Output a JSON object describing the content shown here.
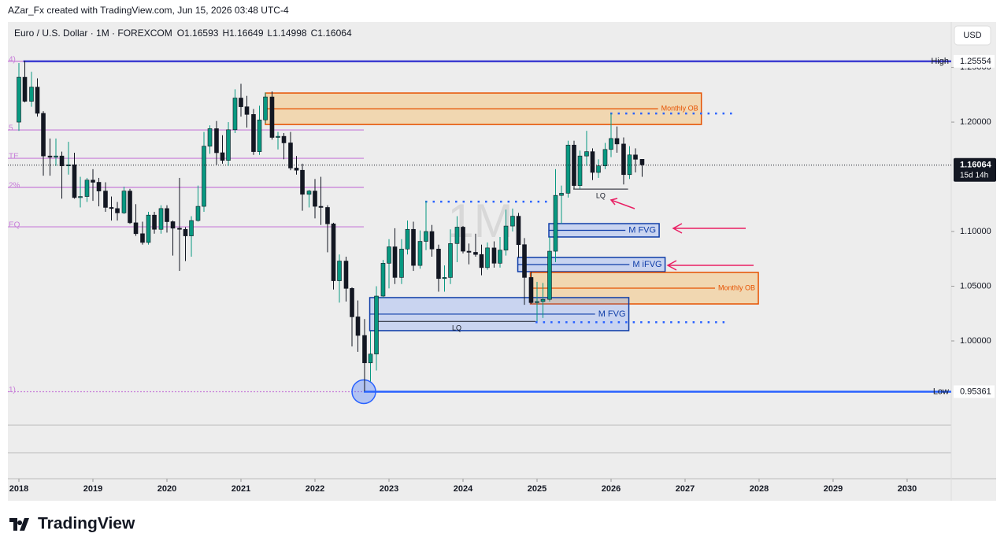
{
  "header": {
    "credit": "AZar_Fx created with TradingView.com, Jun 15, 2026 03:48 UTC-4",
    "brand": "TradingView"
  },
  "chart_data": {
    "type": "candlestick",
    "symbol": "Euro / U.S. Dollar · 1M · FOREXCOM",
    "ohlc_labels": [
      "O",
      "H",
      "L",
      "C"
    ],
    "last_ohlc": [
      1.16593,
      1.16649,
      1.14998,
      1.16064
    ],
    "currency": "USD",
    "watermark": "1M",
    "up_color": "#089981",
    "down_color": "#131722",
    "xlim": [
      2017.851,
      2030.596
    ],
    "xticks": [
      2018,
      2019,
      2020,
      2021,
      2022,
      2023,
      2024,
      2025,
      2026,
      2027,
      2028,
      2029,
      2030
    ],
    "ylim": [
      0.923,
      1.29
    ],
    "yticks": [
      {
        "value": 1.0,
        "label": "1.00000"
      },
      {
        "value": 1.05,
        "label": "1.05000"
      },
      {
        "value": 1.1,
        "label": "1.10000"
      },
      {
        "value": 1.2,
        "label": "1.20000"
      },
      {
        "value": 1.25,
        "label": "1.25000"
      }
    ],
    "x": [
      2018,
      2018.08,
      2018.17,
      2018.25,
      2018.33,
      2018.42,
      2018.5,
      2018.58,
      2018.67,
      2018.75,
      2018.83,
      2018.92,
      2019,
      2019.08,
      2019.17,
      2019.25,
      2019.33,
      2019.42,
      2019.5,
      2019.58,
      2019.67,
      2019.75,
      2019.83,
      2019.92,
      2020,
      2020.08,
      2020.17,
      2020.25,
      2020.33,
      2020.42,
      2020.5,
      2020.58,
      2020.67,
      2020.75,
      2020.83,
      2020.92,
      2021,
      2021.08,
      2021.17,
      2021.25,
      2021.33,
      2021.42,
      2021.5,
      2021.58,
      2021.67,
      2021.75,
      2021.83,
      2021.92,
      2022,
      2022.08,
      2022.17,
      2022.25,
      2022.33,
      2022.42,
      2022.5,
      2022.58,
      2022.67,
      2022.75,
      2022.83,
      2022.92,
      2023,
      2023.08,
      2023.17,
      2023.25,
      2023.33,
      2023.42,
      2023.5,
      2023.58,
      2023.67,
      2023.75,
      2023.83,
      2023.92,
      2024,
      2024.08,
      2024.17,
      2024.25,
      2024.33,
      2024.42,
      2024.5,
      2024.58,
      2024.67,
      2024.75,
      2024.83,
      2024.92,
      2025,
      2025.08,
      2025.17,
      2025.25,
      2025.33,
      2025.42,
      2025.5,
      2025.58,
      2025.67,
      2025.75,
      2025.83,
      2025.92,
      2026,
      2026.08,
      2026.17,
      2026.25,
      2026.33,
      2026.42
    ],
    "candles": [
      [
        1.2,
        1.254,
        1.192,
        1.241
      ],
      [
        1.241,
        1.256,
        1.218,
        1.219
      ],
      [
        1.219,
        1.246,
        1.214,
        1.232
      ],
      [
        1.232,
        1.24,
        1.205,
        1.208
      ],
      [
        1.208,
        1.21,
        1.151,
        1.169
      ],
      [
        1.169,
        1.185,
        1.151,
        1.168
      ],
      [
        1.168,
        1.185,
        1.16,
        1.169
      ],
      [
        1.169,
        1.173,
        1.13,
        1.16
      ],
      [
        1.16,
        1.182,
        1.152,
        1.161
      ],
      [
        1.161,
        1.172,
        1.13,
        1.131
      ],
      [
        1.131,
        1.15,
        1.122,
        1.132
      ],
      [
        1.132,
        1.149,
        1.127,
        1.147
      ],
      [
        1.147,
        1.157,
        1.128,
        1.145
      ],
      [
        1.145,
        1.149,
        1.123,
        1.137
      ],
      [
        1.137,
        1.145,
        1.118,
        1.122
      ],
      [
        1.122,
        1.132,
        1.11,
        1.121
      ],
      [
        1.121,
        1.127,
        1.11,
        1.117
      ],
      [
        1.117,
        1.141,
        1.116,
        1.137
      ],
      [
        1.137,
        1.139,
        1.107,
        1.108
      ],
      [
        1.108,
        1.125,
        1.096,
        1.098
      ],
      [
        1.098,
        1.109,
        1.088,
        1.09
      ],
      [
        1.09,
        1.118,
        1.088,
        1.115
      ],
      [
        1.115,
        1.118,
        1.098,
        1.102
      ],
      [
        1.102,
        1.124,
        1.098,
        1.121
      ],
      [
        1.121,
        1.124,
        1.099,
        1.109
      ],
      [
        1.109,
        1.11,
        1.078,
        1.103
      ],
      [
        1.103,
        1.149,
        1.064,
        1.102
      ],
      [
        1.102,
        1.104,
        1.073,
        1.096
      ],
      [
        1.096,
        1.114,
        1.077,
        1.11
      ],
      [
        1.11,
        1.142,
        1.109,
        1.123
      ],
      [
        1.123,
        1.191,
        1.118,
        1.178
      ],
      [
        1.178,
        1.197,
        1.171,
        1.194
      ],
      [
        1.194,
        1.201,
        1.161,
        1.172
      ],
      [
        1.172,
        1.188,
        1.162,
        1.165
      ],
      [
        1.165,
        1.2,
        1.16,
        1.193
      ],
      [
        1.193,
        1.23,
        1.19,
        1.222
      ],
      [
        1.222,
        1.235,
        1.205,
        1.214
      ],
      [
        1.214,
        1.224,
        1.195,
        1.207
      ],
      [
        1.207,
        1.212,
        1.17,
        1.173
      ],
      [
        1.173,
        1.215,
        1.17,
        1.202
      ],
      [
        1.202,
        1.227,
        1.199,
        1.223
      ],
      [
        1.223,
        1.228,
        1.184,
        1.186
      ],
      [
        1.186,
        1.191,
        1.175,
        1.187
      ],
      [
        1.187,
        1.19,
        1.166,
        1.181
      ],
      [
        1.181,
        1.191,
        1.156,
        1.158
      ],
      [
        1.158,
        1.169,
        1.152,
        1.156
      ],
      [
        1.156,
        1.162,
        1.119,
        1.134
      ],
      [
        1.134,
        1.138,
        1.122,
        1.137
      ],
      [
        1.137,
        1.148,
        1.112,
        1.123
      ],
      [
        1.123,
        1.15,
        1.106,
        1.122
      ],
      [
        1.122,
        1.124,
        1.081,
        1.107
      ],
      [
        1.107,
        1.108,
        1.047,
        1.055
      ],
      [
        1.055,
        1.079,
        1.035,
        1.073
      ],
      [
        1.073,
        1.077,
        1.036,
        1.048
      ],
      [
        1.048,
        1.049,
        0.995,
        1.022
      ],
      [
        1.022,
        1.037,
        0.99,
        1.005
      ],
      [
        1.005,
        1.02,
        0.954,
        0.98
      ],
      [
        0.98,
        1.009,
        0.963,
        0.988
      ],
      [
        0.988,
        1.05,
        0.973,
        1.041
      ],
      [
        1.041,
        1.074,
        1.039,
        1.071
      ],
      [
        1.071,
        1.093,
        1.048,
        1.086
      ],
      [
        1.086,
        1.103,
        1.052,
        1.058
      ],
      [
        1.058,
        1.093,
        1.052,
        1.084
      ],
      [
        1.084,
        1.11,
        1.079,
        1.102
      ],
      [
        1.102,
        1.109,
        1.064,
        1.069
      ],
      [
        1.069,
        1.101,
        1.066,
        1.091
      ],
      [
        1.091,
        1.128,
        1.083,
        1.1
      ],
      [
        1.1,
        1.106,
        1.077,
        1.084
      ],
      [
        1.084,
        1.088,
        1.045,
        1.057
      ],
      [
        1.057,
        1.069,
        1.045,
        1.058
      ],
      [
        1.058,
        1.102,
        1.052,
        1.089
      ],
      [
        1.089,
        1.114,
        1.072,
        1.104
      ],
      [
        1.104,
        1.105,
        1.08,
        1.082
      ],
      [
        1.082,
        1.089,
        1.07,
        1.081
      ],
      [
        1.081,
        1.098,
        1.077,
        1.079
      ],
      [
        1.079,
        1.088,
        1.06,
        1.067
      ],
      [
        1.067,
        1.09,
        1.065,
        1.085
      ],
      [
        1.085,
        1.091,
        1.067,
        1.071
      ],
      [
        1.071,
        1.095,
        1.067,
        1.083
      ],
      [
        1.083,
        1.12,
        1.078,
        1.105
      ],
      [
        1.105,
        1.121,
        1.1,
        1.114
      ],
      [
        1.114,
        1.117,
        1.076,
        1.088
      ],
      [
        1.088,
        1.094,
        1.033,
        1.058
      ],
      [
        1.058,
        1.063,
        1.034,
        1.035
      ],
      [
        1.035,
        1.054,
        1.018,
        1.036
      ],
      [
        1.036,
        1.053,
        1.021,
        1.038
      ],
      [
        1.038,
        1.095,
        1.036,
        1.082
      ],
      [
        1.082,
        1.157,
        1.072,
        1.133
      ],
      [
        1.133,
        1.142,
        1.107,
        1.135
      ],
      [
        1.135,
        1.183,
        1.131,
        1.179
      ],
      [
        1.179,
        1.183,
        1.139,
        1.142
      ],
      [
        1.142,
        1.174,
        1.139,
        1.169
      ],
      [
        1.169,
        1.192,
        1.16,
        1.173
      ],
      [
        1.173,
        1.176,
        1.147,
        1.154
      ],
      [
        1.154,
        1.166,
        1.149,
        1.16
      ],
      [
        1.16,
        1.181,
        1.157,
        1.175
      ],
      [
        1.175,
        1.208,
        1.168,
        1.185
      ],
      [
        1.185,
        1.196,
        1.172,
        1.18
      ],
      [
        1.18,
        1.186,
        1.143,
        1.152
      ],
      [
        1.152,
        1.178,
        1.148,
        1.17
      ],
      [
        1.17,
        1.176,
        1.154,
        1.166
      ],
      [
        1.166,
        1.166,
        1.15,
        1.161
      ]
    ],
    "high": {
      "label": "High",
      "value": 1.25554,
      "value_label": "1.25554",
      "x": 2018.06
    },
    "low": {
      "label": "Low",
      "value": 0.95361,
      "value_label": "0.95361",
      "x": 2022.66
    },
    "last": {
      "value": 1.16064,
      "value_label": "1.16064",
      "countdown": "15d 14h"
    },
    "fib_x": [
      2017.851,
      2022.66
    ],
    "fib_levels": [
      {
        "label": "4)",
        "value": 1.25554
      },
      {
        "label": "5",
        "value": 1.1928
      },
      {
        "label": "TE",
        "value": 1.1669
      },
      {
        "label": "2%",
        "value": 1.1403
      },
      {
        "label": "EQ",
        "value": 1.1043
      },
      {
        "label": "1)",
        "value": 0.95361
      }
    ],
    "zones": [
      {
        "label": "Monthly OB",
        "x": [
          2021.33,
          2027.22
        ],
        "range": [
          1.1978,
          1.2266
        ],
        "color": "#e65100"
      },
      {
        "label": "M FVG",
        "x": [
          2025.16,
          2026.65
        ],
        "range": [
          1.095,
          1.1072
        ],
        "color": "#0d3ca8"
      },
      {
        "label": "M iFVG",
        "x": [
          2024.74,
          2026.73
        ],
        "range": [
          1.0633,
          1.0763
        ],
        "color": "#0d3ca8"
      },
      {
        "label": "Monthly OB",
        "x": [
          2024.91,
          2027.99
        ],
        "range": [
          1.0338,
          1.0626
        ],
        "color": "#e65100"
      },
      {
        "label": "M FVG",
        "x": [
          2022.74,
          2026.24
        ],
        "range": [
          1.0094,
          1.0396
        ],
        "color": "#0d3ca8"
      }
    ],
    "dotted_levels": [
      {
        "value": 1.2079,
        "x": [
          2025.99,
          2027.69
        ]
      },
      {
        "value": 1.1273,
        "x": [
          2023.49,
          2025.19
        ]
      },
      {
        "value": 1.0171,
        "x": [
          2024.98,
          2027.59
        ]
      }
    ],
    "lq": [
      {
        "label": "LQ",
        "value": 1.1388,
        "x": [
          2025.49,
          2026.23
        ]
      },
      {
        "label": "LQ",
        "value": 1.0178,
        "x": [
          2022.85,
          2024.98
        ]
      }
    ]
  }
}
